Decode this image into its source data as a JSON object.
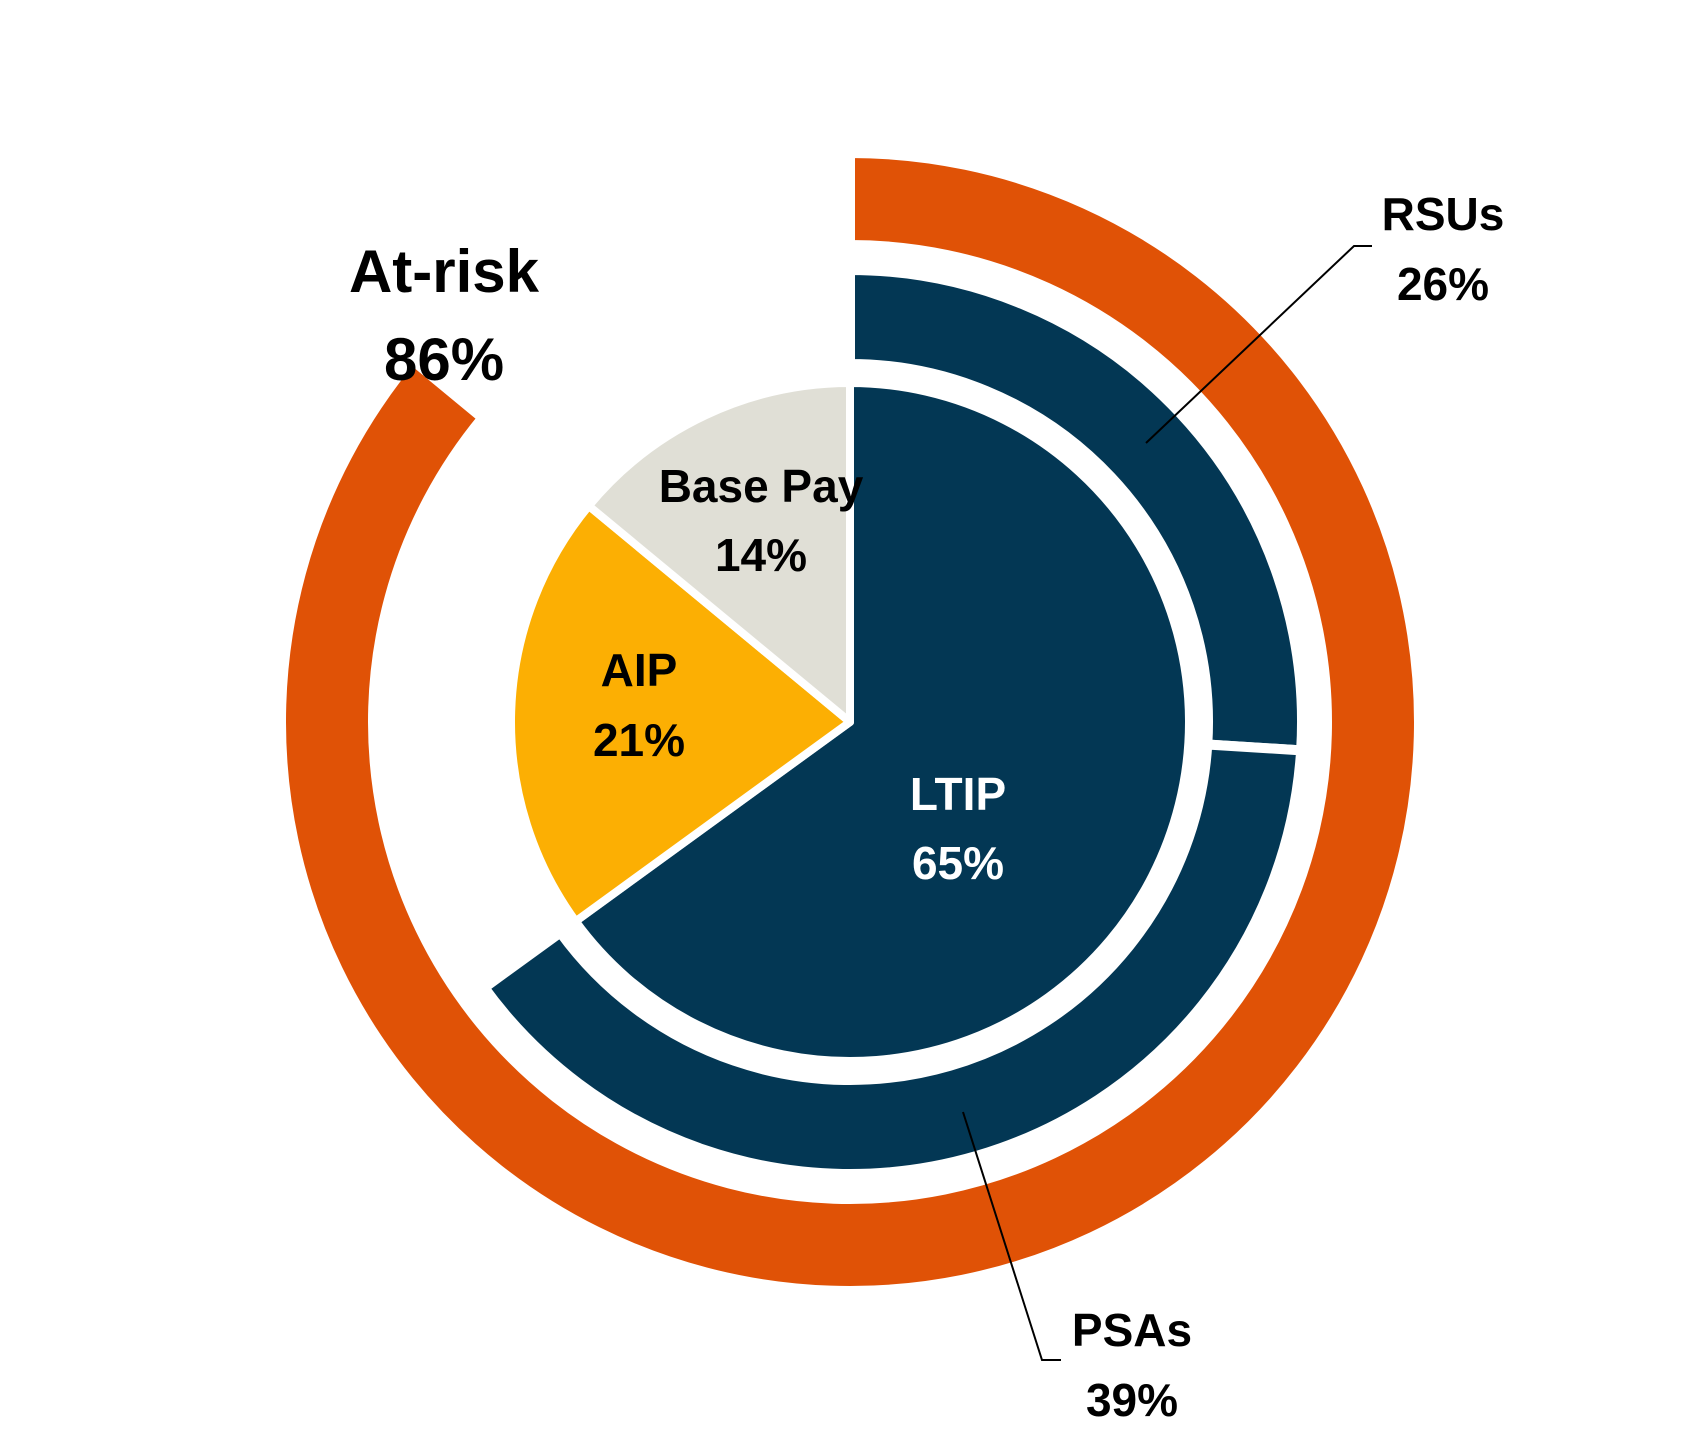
{
  "chart_data": {
    "type": "pie",
    "subtype": "nested donut",
    "legend": "none",
    "rings": [
      {
        "ring": "inner",
        "slices": [
          {
            "label": "LTIP",
            "value": 65,
            "display": "65%",
            "color": "#033754",
            "text_color": "#ffffff"
          },
          {
            "label": "AIP",
            "value": 21,
            "display": "21%",
            "color": "#FCAF03",
            "text_color": "#000000"
          },
          {
            "label": "Base Pay",
            "value": 14,
            "display": "14%",
            "color": "#E0DFD6",
            "text_color": "#000000"
          }
        ]
      },
      {
        "ring": "middle",
        "slices": [
          {
            "label": "RSUs",
            "value": 26,
            "display": "26%",
            "color": "#033754"
          },
          {
            "label": "PSAs",
            "value": 39,
            "display": "39%",
            "color": "#033754"
          }
        ]
      },
      {
        "ring": "outer",
        "slices": [
          {
            "label": "At-risk",
            "value": 86,
            "display": "86%",
            "color": "#E05206"
          }
        ]
      }
    ]
  }
}
